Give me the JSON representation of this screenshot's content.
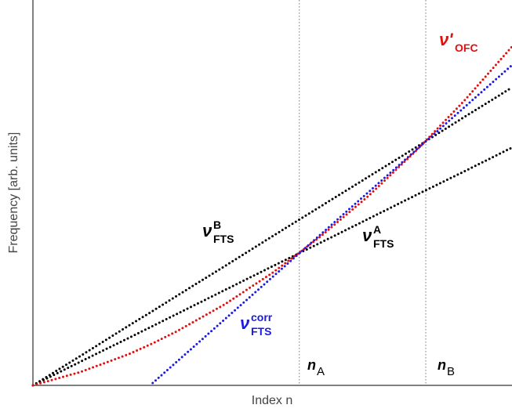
{
  "chart_data": {
    "type": "line",
    "x_label": "Index n",
    "y_label": "Frequency [arb. units]",
    "xlim": [
      0,
      10
    ],
    "ylim": [
      0,
      10
    ],
    "x": [
      0,
      1,
      2,
      2.5,
      3,
      4,
      5,
      6,
      7,
      8,
      9,
      10
    ],
    "series": [
      {
        "name": "ν_FTS^A",
        "color": "#000000",
        "values": [
          0,
          0.62,
          1.23,
          1.54,
          1.85,
          2.47,
          3.09,
          3.7,
          4.32,
          4.94,
          5.55,
          6.17
        ]
      },
      {
        "name": "ν_FTS^B",
        "color": "#000000",
        "values": [
          0,
          0.77,
          1.55,
          1.93,
          2.32,
          3.09,
          3.87,
          4.64,
          5.41,
          6.18,
          6.96,
          7.73
        ]
      },
      {
        "name": "ν'_OFC",
        "color": "#e01010",
        "values": [
          0,
          0.35,
          0.81,
          1.09,
          1.4,
          2.1,
          2.92,
          3.86,
          4.91,
          6.09,
          7.38,
          8.79
        ]
      },
      {
        "name": "ν_FTS^corr",
        "color": "#1a1ae0",
        "values": [
          null,
          null,
          null,
          0.06,
          0.61,
          1.71,
          2.81,
          3.91,
          5.01,
          6.11,
          7.21,
          8.31
        ]
      }
    ],
    "annotations": [
      {
        "symbol": "ν'",
        "sub": "OFC",
        "color": "#e01010"
      },
      {
        "symbol": "ν",
        "sup": "B",
        "sub": "FTS",
        "color": "#000000"
      },
      {
        "symbol": "ν",
        "sup": "A",
        "sub": "FTS",
        "color": "#000000"
      },
      {
        "symbol": "ν",
        "sup": "corr",
        "sub": "FTS",
        "color": "#1a1ae0"
      }
    ],
    "markers": [
      {
        "label": "n",
        "sub": "A",
        "x": 5.56
      },
      {
        "label": "n",
        "sub": "B",
        "x": 8.2
      }
    ]
  }
}
